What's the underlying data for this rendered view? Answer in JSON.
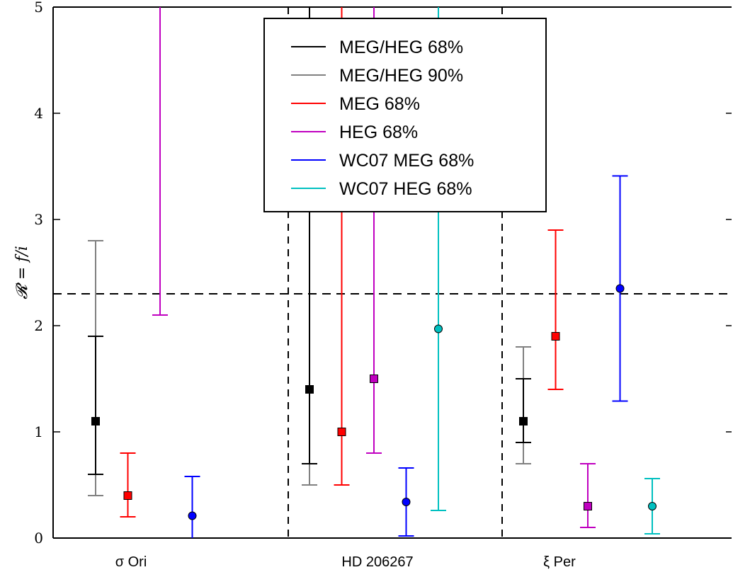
{
  "chart_data": {
    "type": "scatter",
    "ylabel": "𝓡 = f/i",
    "ylim": [
      0,
      5
    ],
    "yticks": [
      "0",
      "1",
      "2",
      "3",
      "4",
      "5"
    ],
    "categories": [
      "σ Ori",
      "HD 206267",
      "ξ Per"
    ],
    "threshold_line": 2.3,
    "legend_position": "top-center",
    "series": [
      {
        "name": "MEG/HEG 68%",
        "color": "#000000",
        "marker": "square",
        "points": [
          {
            "group": "σ Ori",
            "offset": 0,
            "value": 1.1,
            "low": 0.6,
            "high": 1.9
          },
          {
            "group": "HD 206267",
            "offset": 0,
            "value": 1.4,
            "low": 0.7,
            "high": 5.0
          },
          {
            "group": "ξ Per",
            "offset": 0,
            "value": 1.1,
            "low": 0.9,
            "high": 1.5
          }
        ]
      },
      {
        "name": "MEG/HEG 90%",
        "color": "#808080",
        "marker": "none",
        "points": [
          {
            "group": "σ Ori",
            "offset": 0,
            "value": null,
            "low": 0.4,
            "high": 2.8
          },
          {
            "group": "HD 206267",
            "offset": 0,
            "value": null,
            "low": 0.5,
            "high": 5.0
          },
          {
            "group": "ξ Per",
            "offset": 0,
            "value": null,
            "low": 0.7,
            "high": 1.8
          }
        ]
      },
      {
        "name": "MEG 68%",
        "color": "#ff0000",
        "marker": "square",
        "points": [
          {
            "group": "σ Ori",
            "offset": 1,
            "value": 0.4,
            "low": 0.2,
            "high": 0.8
          },
          {
            "group": "HD 206267",
            "offset": 1,
            "value": 1.0,
            "low": 0.5,
            "high": 5.0
          },
          {
            "group": "ξ Per",
            "offset": 1,
            "value": 1.9,
            "low": 1.4,
            "high": 2.9
          }
        ]
      },
      {
        "name": "HEG 68%",
        "color": "#c000c0",
        "marker": "square",
        "points": [
          {
            "group": "σ Ori",
            "offset": 2,
            "value": null,
            "low": 2.1,
            "high": 5.0
          },
          {
            "group": "HD 206267",
            "offset": 2,
            "value": 1.5,
            "low": 0.8,
            "high": 5.0
          },
          {
            "group": "ξ Per",
            "offset": 2,
            "value": 0.3,
            "low": 0.1,
            "high": 0.7
          }
        ]
      },
      {
        "name": "WC07 MEG 68%",
        "color": "#0000ff",
        "marker": "circle",
        "points": [
          {
            "group": "σ Ori",
            "offset": 3,
            "value": 0.21,
            "low": 0.0,
            "high": 0.58
          },
          {
            "group": "HD 206267",
            "offset": 3,
            "value": 0.34,
            "low": 0.02,
            "high": 0.66
          },
          {
            "group": "ξ Per",
            "offset": 3,
            "value": 2.35,
            "low": 1.29,
            "high": 3.41
          }
        ]
      },
      {
        "name": "WC07 HEG 68%",
        "color": "#00c0c0",
        "marker": "circle",
        "points": [
          {
            "group": "HD 206267",
            "offset": 4,
            "value": 1.97,
            "low": 0.26,
            "high": 5.0
          },
          {
            "group": "ξ Per",
            "offset": 4,
            "value": 0.3,
            "low": 0.04,
            "high": 0.56
          }
        ]
      }
    ]
  }
}
